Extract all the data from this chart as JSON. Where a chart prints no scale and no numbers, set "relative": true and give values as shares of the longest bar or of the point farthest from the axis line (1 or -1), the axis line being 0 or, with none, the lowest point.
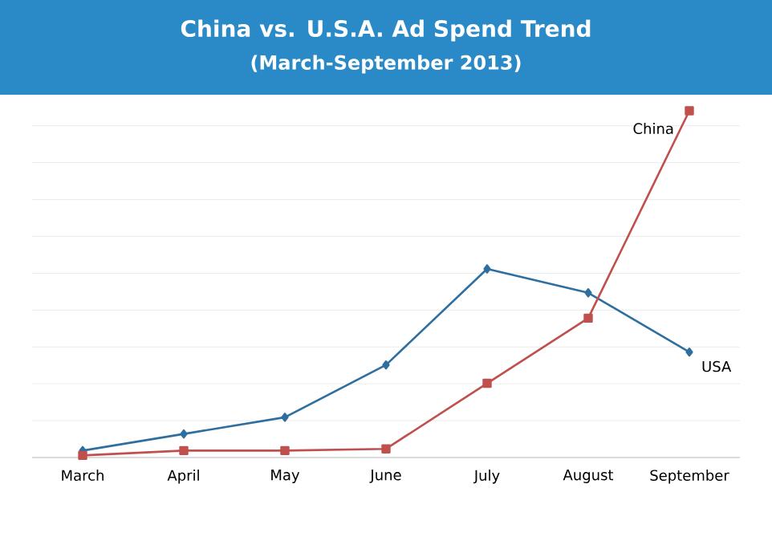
{
  "chart_data": {
    "type": "line",
    "title": "China vs. U.S.A. Ad Spend Trend",
    "subtitle": "(March-September 2013)",
    "categories": [
      "March",
      "April",
      "May",
      "June",
      "July",
      "August",
      "September"
    ],
    "relative": true,
    "grid": "y",
    "series": [
      {
        "name": "USA",
        "color": "#2e6fa0",
        "marker": "diamond",
        "values": [
          0.02,
          0.068,
          0.116,
          0.267,
          0.544,
          0.475,
          0.304
        ]
      },
      {
        "name": "China",
        "color": "#c0504d",
        "marker": "square",
        "values": [
          0.006,
          0.02,
          0.02,
          0.025,
          0.214,
          0.402,
          1
        ]
      }
    ]
  }
}
